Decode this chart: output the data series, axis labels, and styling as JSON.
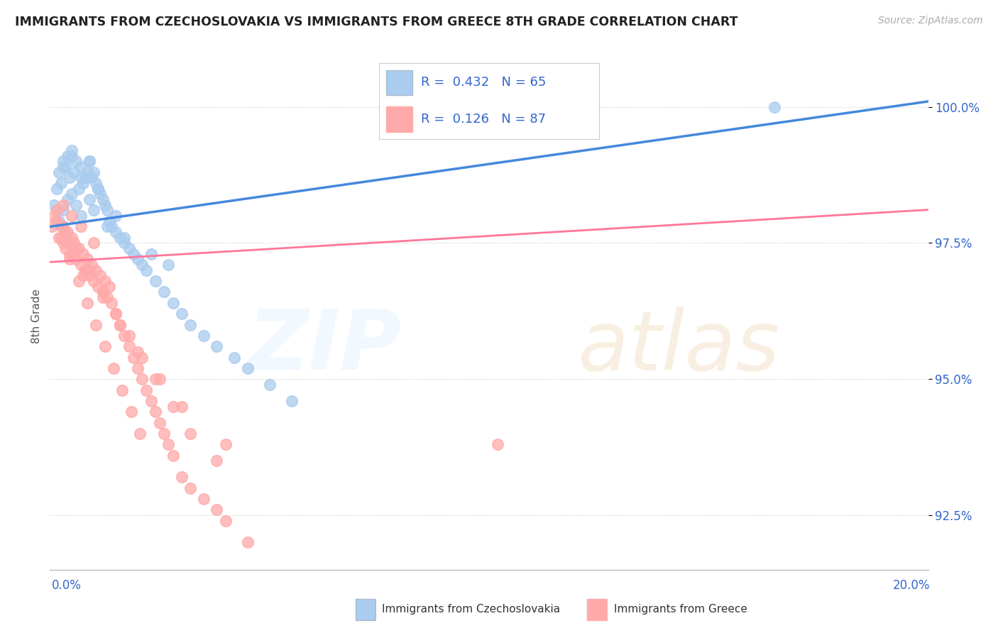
{
  "title": "IMMIGRANTS FROM CZECHOSLOVAKIA VS IMMIGRANTS FROM GREECE 8TH GRADE CORRELATION CHART",
  "source": "Source: ZipAtlas.com",
  "ylabel": "8th Grade",
  "xmin": 0.0,
  "xmax": 20.0,
  "ymin": 91.5,
  "ymax": 100.8,
  "yticks": [
    92.5,
    95.0,
    97.5,
    100.0
  ],
  "ytick_labels": [
    "92.5%",
    "95.0%",
    "97.5%",
    "100.0%"
  ],
  "color_blue": "#AACCEE",
  "color_pink": "#FFAAAA",
  "line_blue": "#4488DD",
  "line_pink": "#FF7799",
  "series1_label": "Immigrants from Czechoslovakia",
  "series2_label": "Immigrants from Greece",
  "R1": 0.432,
  "N1": 65,
  "R2": 0.126,
  "N2": 87,
  "blue_x": [
    0.1,
    0.15,
    0.2,
    0.2,
    0.25,
    0.3,
    0.3,
    0.35,
    0.4,
    0.4,
    0.45,
    0.5,
    0.5,
    0.55,
    0.6,
    0.6,
    0.65,
    0.7,
    0.7,
    0.75,
    0.8,
    0.85,
    0.9,
    0.9,
    0.95,
    1.0,
    1.0,
    1.05,
    1.1,
    1.15,
    1.2,
    1.25,
    1.3,
    1.35,
    1.4,
    1.5,
    1.6,
    1.7,
    1.8,
    1.9,
    2.0,
    2.1,
    2.2,
    2.4,
    2.6,
    2.8,
    3.0,
    3.2,
    3.5,
    3.8,
    4.2,
    4.5,
    5.0,
    5.5,
    0.3,
    0.5,
    0.7,
    0.9,
    1.1,
    1.3,
    1.5,
    1.7,
    2.3,
    2.7,
    16.5
  ],
  "blue_y": [
    98.2,
    98.5,
    98.8,
    97.9,
    98.6,
    99.0,
    98.1,
    98.9,
    99.1,
    98.3,
    98.7,
    99.2,
    98.4,
    98.8,
    99.0,
    98.2,
    98.5,
    98.9,
    98.0,
    98.6,
    98.7,
    98.8,
    99.0,
    98.3,
    98.7,
    98.8,
    98.1,
    98.6,
    98.5,
    98.4,
    98.3,
    98.2,
    98.1,
    97.9,
    97.8,
    97.7,
    97.6,
    97.5,
    97.4,
    97.3,
    97.2,
    97.1,
    97.0,
    96.8,
    96.6,
    96.4,
    96.2,
    96.0,
    95.8,
    95.6,
    95.4,
    95.2,
    94.9,
    94.6,
    98.9,
    99.1,
    98.7,
    99.0,
    98.5,
    97.8,
    98.0,
    97.6,
    97.3,
    97.1,
    100.0
  ],
  "pink_x": [
    0.05,
    0.1,
    0.15,
    0.2,
    0.25,
    0.3,
    0.3,
    0.35,
    0.4,
    0.45,
    0.5,
    0.5,
    0.55,
    0.6,
    0.65,
    0.7,
    0.7,
    0.75,
    0.8,
    0.85,
    0.9,
    0.95,
    1.0,
    1.0,
    1.05,
    1.1,
    1.15,
    1.2,
    1.25,
    1.3,
    1.35,
    1.4,
    1.5,
    1.6,
    1.7,
    1.8,
    1.9,
    2.0,
    2.1,
    2.2,
    2.3,
    2.4,
    2.5,
    2.6,
    2.7,
    2.8,
    3.0,
    3.2,
    3.5,
    3.8,
    4.0,
    4.5,
    0.25,
    0.45,
    0.65,
    0.85,
    1.05,
    1.25,
    1.45,
    1.65,
    1.85,
    2.05,
    0.3,
    0.6,
    0.9,
    1.2,
    1.5,
    1.8,
    2.1,
    2.5,
    3.0,
    4.0,
    0.4,
    0.8,
    1.2,
    1.6,
    2.0,
    2.4,
    2.8,
    3.2,
    3.8,
    10.2,
    0.15,
    0.35,
    0.55,
    0.75
  ],
  "pink_y": [
    97.8,
    98.0,
    97.9,
    97.6,
    97.8,
    97.5,
    98.2,
    97.4,
    97.7,
    97.3,
    97.6,
    98.0,
    97.5,
    97.2,
    97.4,
    97.1,
    97.8,
    97.3,
    97.0,
    97.2,
    96.9,
    97.1,
    96.8,
    97.5,
    97.0,
    96.7,
    96.9,
    96.6,
    96.8,
    96.5,
    96.7,
    96.4,
    96.2,
    96.0,
    95.8,
    95.6,
    95.4,
    95.2,
    95.0,
    94.8,
    94.6,
    94.4,
    94.2,
    94.0,
    93.8,
    93.6,
    93.2,
    93.0,
    92.8,
    92.6,
    92.4,
    92.0,
    97.6,
    97.2,
    96.8,
    96.4,
    96.0,
    95.6,
    95.2,
    94.8,
    94.4,
    94.0,
    97.8,
    97.4,
    97.0,
    96.6,
    96.2,
    95.8,
    95.4,
    95.0,
    94.5,
    93.8,
    97.5,
    97.0,
    96.5,
    96.0,
    95.5,
    95.0,
    94.5,
    94.0,
    93.5,
    93.8,
    98.1,
    97.7,
    97.3,
    96.9
  ]
}
